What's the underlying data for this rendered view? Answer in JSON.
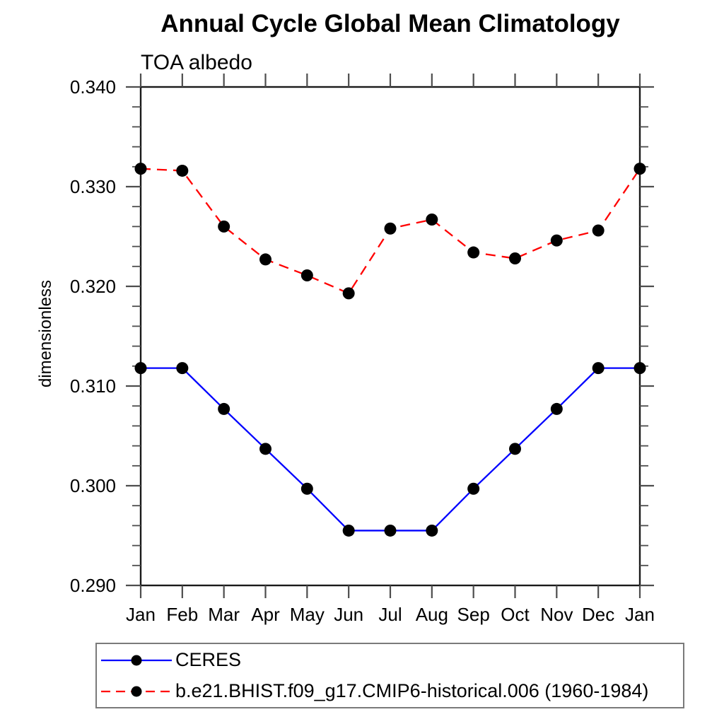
{
  "chart_data": {
    "type": "line",
    "title": "Annual Cycle Global Mean Climatology",
    "subtitle": "TOA albedo",
    "ylabel": "dimensionless",
    "xlabel": "",
    "categories": [
      "Jan",
      "Feb",
      "Mar",
      "Apr",
      "May",
      "Jun",
      "Jul",
      "Aug",
      "Sep",
      "Oct",
      "Nov",
      "Dec",
      "Jan"
    ],
    "ylim": [
      0.29,
      0.34
    ],
    "ytick_step": 0.01,
    "yminor_step": 0.002,
    "ytick_labels": [
      "0.290",
      "0.300",
      "0.310",
      "0.320",
      "0.330",
      "0.340"
    ],
    "grid": false,
    "legend_position": "bottom-left-box",
    "frame_color": "#1a1a1a",
    "tick_color": "#4d4d4d",
    "series": [
      {
        "name": "CERES",
        "color": "#0000ff",
        "style": "solid",
        "marker": "circle",
        "marker_color": "#000000",
        "values": [
          0.3118,
          0.3118,
          0.3077,
          0.3037,
          0.2997,
          0.2955,
          0.2955,
          0.2955,
          0.2997,
          0.3037,
          0.3077,
          0.3118,
          0.3118
        ]
      },
      {
        "name": "b.e21.BHIST.f09_g17.CMIP6-historical.006 (1960-1984)",
        "color": "#ff0000",
        "style": "dashed",
        "marker": "circle",
        "marker_color": "#000000",
        "values": [
          0.3318,
          0.3316,
          0.326,
          0.3227,
          0.3211,
          0.3193,
          0.3258,
          0.3267,
          0.3234,
          0.3228,
          0.3246,
          0.3256,
          0.3318
        ]
      }
    ]
  }
}
